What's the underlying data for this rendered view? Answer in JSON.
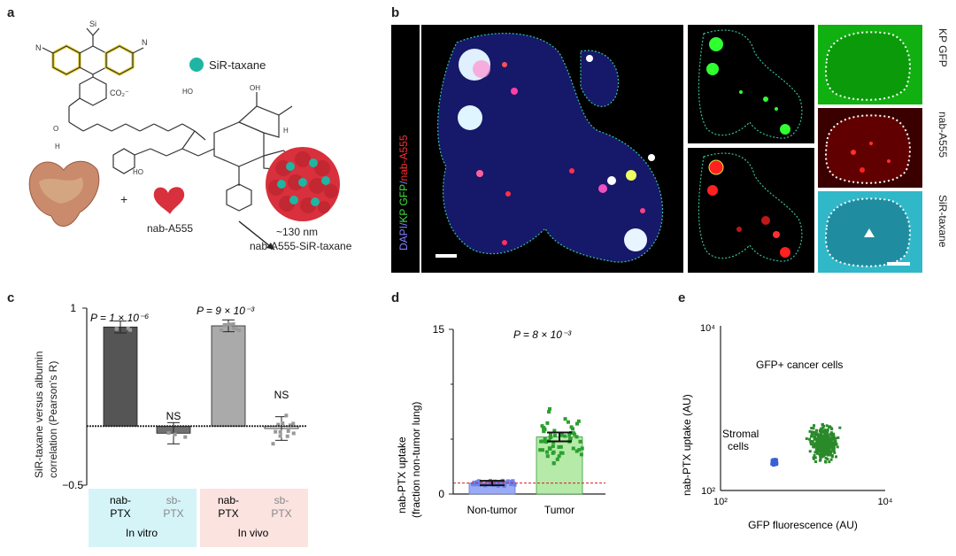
{
  "panels": {
    "a": {
      "letter": "a",
      "legend_label": "SiR-taxane",
      "nab_label": "nab-A555",
      "size_label": "~130 nm",
      "product_label": "nab-A555-SiR-taxane",
      "plus": "+",
      "co2": "CO₂⁻"
    },
    "b": {
      "letter": "b",
      "main_labels": [
        "DAPI/",
        "KP GFP",
        "/",
        "nab-A555"
      ],
      "right_labels": [
        "KP GFP",
        "nab-A555",
        "SiR-taxane"
      ]
    },
    "c": {
      "letter": "c",
      "ylabel_1": "SiR-taxane versus albumin",
      "ylabel_2": "correlation (Pearson's R)",
      "ytick_top": "1",
      "ytick_bottom": "−0.5",
      "p1": "P = 1 × 10⁻⁶",
      "p2": "P = 9 × 10⁻³",
      "ns": "NS",
      "groups": [
        {
          "line1": "nab-",
          "line2": "PTX"
        },
        {
          "line1": "sb-",
          "line2": "PTX"
        },
        {
          "line1": "nab-",
          "line2": "PTX"
        },
        {
          "line1": "sb-",
          "line2": "PTX"
        }
      ],
      "in_vitro": "In vitro",
      "in_vivo": "In vivo"
    },
    "d": {
      "letter": "d",
      "ylabel_1": "nab-PTX uptake",
      "ylabel_2": "(fraction non-tumor lung)",
      "ytick_top": "15",
      "ytick_bottom": "0",
      "p": "P = 8 × 10⁻³",
      "cat1": "Non-tumor",
      "cat2": "Tumor"
    },
    "e": {
      "letter": "e",
      "ylabel": "nab-PTX uptake (AU)",
      "xlabel": "GFP fluorescence (AU)",
      "ytick_top": "10⁴",
      "ytick_bottom": "10²",
      "xtick_left": "10²",
      "xtick_right": "10⁴",
      "label_cancer": "GFP+ cancer cells",
      "label_stromal_1": "Stromal",
      "label_stromal_2": "cells"
    }
  },
  "chart_data": [
    {
      "type": "bar",
      "panel": "c",
      "categories": [
        "nab-PTX",
        "sb-PTX",
        "nab-PTX",
        "sb-PTX"
      ],
      "values": [
        0.84,
        -0.06,
        0.85,
        -0.02
      ],
      "errors": [
        0.05,
        0.09,
        0.05,
        0.1
      ],
      "ylim": [
        -0.5,
        1
      ],
      "baseline": 0,
      "colors": [
        "#555555",
        "#707070",
        "#aaaaaa",
        "#eeeeee"
      ]
    },
    {
      "type": "bar",
      "panel": "d",
      "categories": [
        "Non-tumor",
        "Tumor"
      ],
      "values": [
        1.0,
        5.2
      ],
      "errors": [
        0.2,
        0.4
      ],
      "ylim": [
        0,
        15
      ],
      "reference_line": 1,
      "colors": [
        "#9aaaf5",
        "#b5eaa8"
      ]
    },
    {
      "type": "scatter",
      "panel": "e",
      "xscale": "log",
      "yscale": "log",
      "xlim": [
        100,
        10000
      ],
      "ylim": [
        100,
        10000
      ],
      "clusters": [
        {
          "name": "Stromal cells",
          "color": "#3a5fd6",
          "center": [
            450,
            220
          ],
          "count": 80
        },
        {
          "name": "GFP+ cancer cells",
          "color": "#2a8a2a",
          "center": [
            1800,
            380
          ],
          "count": 350
        }
      ]
    }
  ]
}
